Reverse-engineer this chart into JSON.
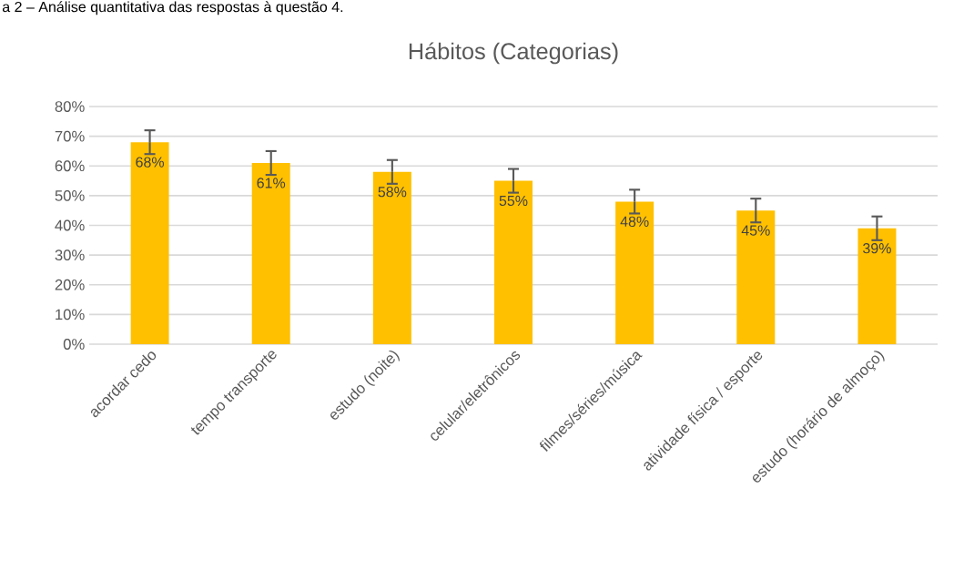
{
  "chart_data": {
    "type": "bar",
    "title": "Hábitos (Categorias)",
    "annotations": [
      "a 2 – Análise quantitativa das respostas à questão 4."
    ],
    "categories": [
      "acordar cedo",
      "tempo transporte",
      "estudo (noite)",
      "celular/eletrônicos",
      "filmes/séries/música",
      "atividade física / esporte",
      "estudo (horário de almoço)"
    ],
    "values": [
      68,
      61,
      58,
      55,
      48,
      45,
      39
    ],
    "value_labels": [
      "68%",
      "61%",
      "58%",
      "55%",
      "48%",
      "45%",
      "39%"
    ],
    "errors": [
      4,
      4,
      4,
      4,
      4,
      4,
      4
    ],
    "color": "#ffc000",
    "ylim": [
      0,
      80
    ],
    "yticks": [
      {
        "value": 0,
        "label": "0%"
      },
      {
        "value": 10,
        "label": "10%"
      },
      {
        "value": 20,
        "label": "20%"
      },
      {
        "value": 30,
        "label": "30%"
      },
      {
        "value": 40,
        "label": "40%"
      },
      {
        "value": 50,
        "label": "50%"
      },
      {
        "value": 60,
        "label": "60%"
      },
      {
        "value": 70,
        "label": "70%"
      },
      {
        "value": 80,
        "label": "80%"
      }
    ],
    "grid": "y"
  }
}
